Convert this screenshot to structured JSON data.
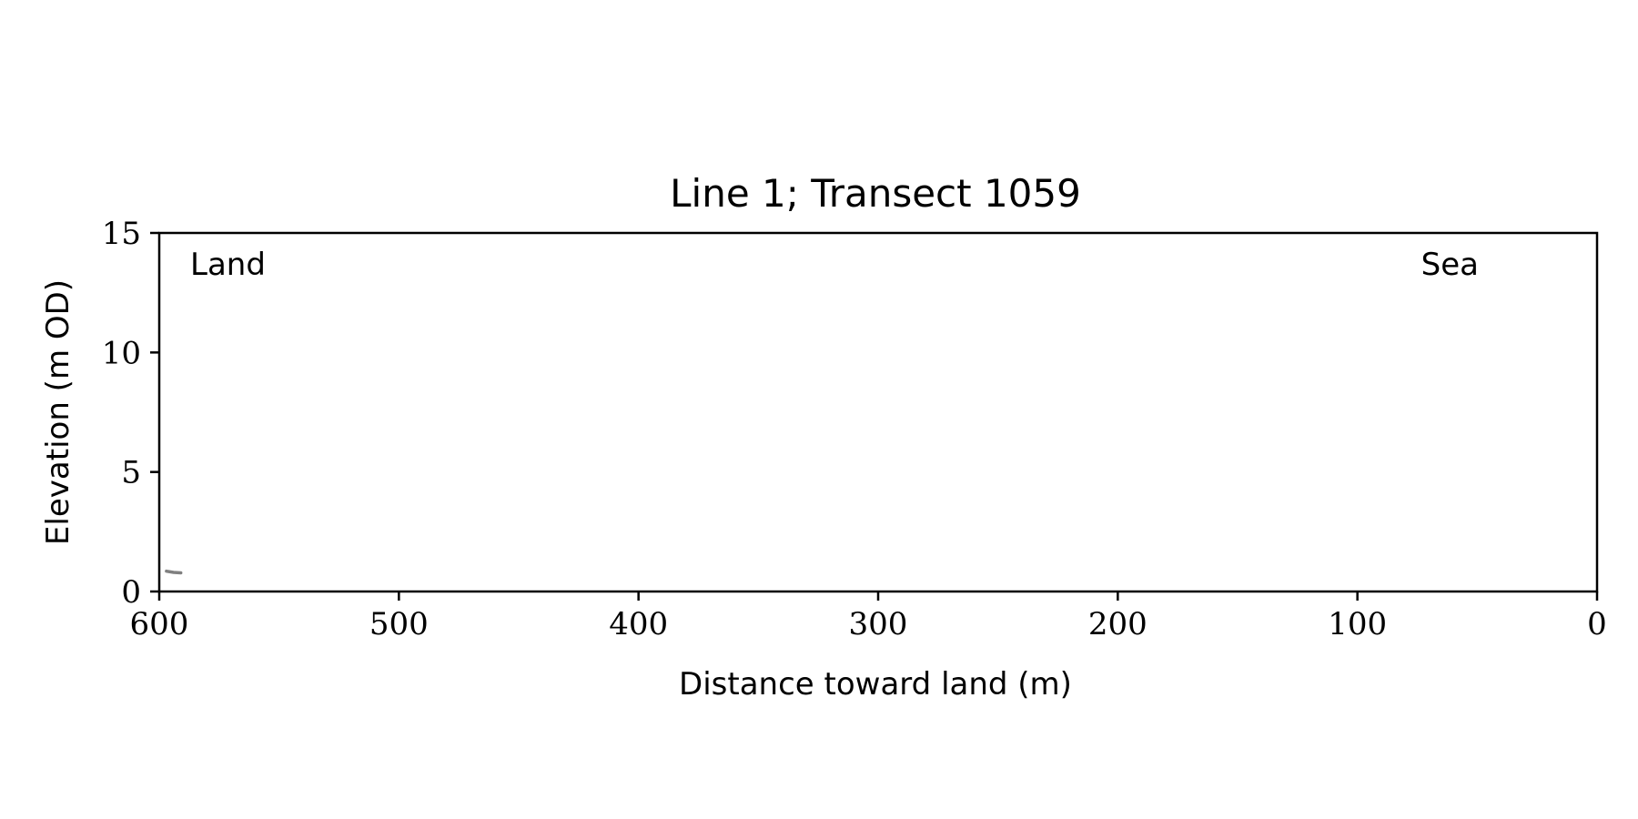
{
  "chart_data": {
    "type": "line",
    "title": "Line 1; Transect 1059",
    "xlabel": "Distance toward land (m)",
    "ylabel": "Elevation (m OD)",
    "xlim": [
      600,
      0
    ],
    "ylim": [
      0,
      15
    ],
    "x_reversed": true,
    "xticks": [
      "600",
      "500",
      "400",
      "300",
      "200",
      "100",
      "0"
    ],
    "xtick_values": [
      600,
      500,
      400,
      300,
      200,
      100,
      0
    ],
    "yticks": [
      "0",
      "5",
      "10",
      "15"
    ],
    "ytick_values": [
      0,
      5,
      10,
      15
    ],
    "grid": false,
    "annotations": {
      "left": "Land",
      "right": "Sea"
    },
    "series": [
      {
        "color": "#808080",
        "x": [
          597,
          594,
          591
        ],
        "y": [
          0.85,
          0.8,
          0.78
        ]
      }
    ]
  }
}
